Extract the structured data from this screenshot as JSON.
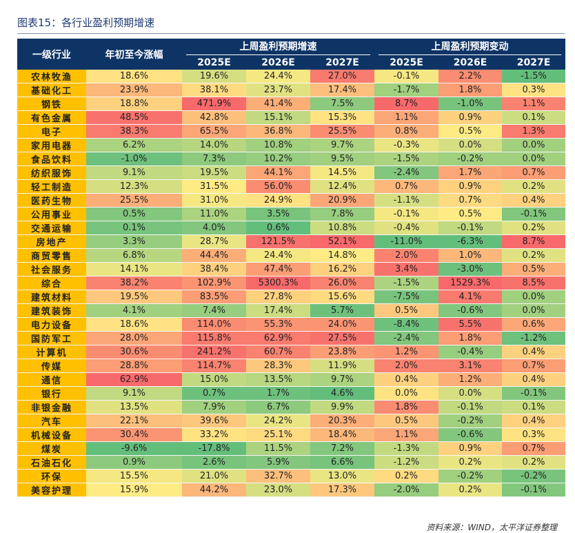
{
  "title": "图表15：各行业盈利预期增速",
  "header": {
    "industry": "一级行业",
    "ytd": "年初至今涨幅",
    "growth_group": "上周盈利预期增速",
    "change_group": "上周盈利预期变动",
    "years": [
      "2025E",
      "2026E",
      "2027E"
    ]
  },
  "rows": [
    {
      "name": "农林牧渔",
      "ytd": "18.6%",
      "g25": "19.6%",
      "g26": "24.4%",
      "g27": "27.0%",
      "c25": "-0.1%",
      "c26": "2.2%",
      "c27": "-1.5%"
    },
    {
      "name": "基础化工",
      "ytd": "23.9%",
      "g25": "38.1%",
      "g26": "23.7%",
      "g27": "17.4%",
      "c25": "-1.7%",
      "c26": "1.8%",
      "c27": "0.3%"
    },
    {
      "name": "钢铁",
      "ytd": "18.8%",
      "g25": "471.9%",
      "g26": "41.4%",
      "g27": "7.5%",
      "c25": "8.7%",
      "c26": "-1.0%",
      "c27": "1.1%"
    },
    {
      "name": "有色金属",
      "ytd": "48.5%",
      "g25": "42.8%",
      "g26": "15.1%",
      "g27": "15.3%",
      "c25": "1.1%",
      "c26": "0.9%",
      "c27": "0.1%"
    },
    {
      "name": "电子",
      "ytd": "38.3%",
      "g25": "65.5%",
      "g26": "36.8%",
      "g27": "25.5%",
      "c25": "0.8%",
      "c26": "0.5%",
      "c27": "1.3%"
    },
    {
      "name": "家用电器",
      "ytd": "6.2%",
      "g25": "14.0%",
      "g26": "10.8%",
      "g27": "9.7%",
      "c25": "-0.3%",
      "c26": "0.0%",
      "c27": "0.0%"
    },
    {
      "name": "食品饮料",
      "ytd": "-1.0%",
      "g25": "7.3%",
      "g26": "10.2%",
      "g27": "9.5%",
      "c25": "-1.5%",
      "c26": "-0.2%",
      "c27": "0.0%"
    },
    {
      "name": "纺织服饰",
      "ytd": "9.1%",
      "g25": "19.5%",
      "g26": "44.1%",
      "g27": "14.5%",
      "c25": "-2.4%",
      "c26": "1.7%",
      "c27": "0.7%"
    },
    {
      "name": "轻工制造",
      "ytd": "12.3%",
      "g25": "31.5%",
      "g26": "56.0%",
      "g27": "12.4%",
      "c25": "0.7%",
      "c26": "0.9%",
      "c27": "0.2%"
    },
    {
      "name": "医药生物",
      "ytd": "25.5%",
      "g25": "31.0%",
      "g26": "24.9%",
      "g27": "20.9%",
      "c25": "-1.1%",
      "c26": "0.7%",
      "c27": "0.4%"
    },
    {
      "name": "公用事业",
      "ytd": "0.5%",
      "g25": "11.0%",
      "g26": "3.5%",
      "g27": "7.8%",
      "c25": "-0.1%",
      "c26": "0.5%",
      "c27": "-0.1%"
    },
    {
      "name": "交通运输",
      "ytd": "0.1%",
      "g25": "4.0%",
      "g26": "0.6%",
      "g27": "10.8%",
      "c25": "-0.4%",
      "c26": "-0.1%",
      "c27": "0.2%"
    },
    {
      "name": "房地产",
      "ytd": "3.3%",
      "g25": "28.7%",
      "g26": "121.5%",
      "g27": "52.1%",
      "c25": "-11.0%",
      "c26": "-6.3%",
      "c27": "8.7%"
    },
    {
      "name": "商贸零售",
      "ytd": "6.8%",
      "g25": "44.4%",
      "g26": "24.4%",
      "g27": "14.8%",
      "c25": "2.0%",
      "c26": "1.0%",
      "c27": "0.2%"
    },
    {
      "name": "社会服务",
      "ytd": "14.1%",
      "g25": "38.4%",
      "g26": "47.4%",
      "g27": "16.2%",
      "c25": "3.4%",
      "c26": "-3.0%",
      "c27": "0.5%"
    },
    {
      "name": "综合",
      "ytd": "38.2%",
      "g25": "102.9%",
      "g26": "5300.3%",
      "g27": "26.0%",
      "c25": "-1.5%",
      "c26": "1529.3%",
      "c27": "8.5%"
    },
    {
      "name": "建筑材料",
      "ytd": "19.5%",
      "g25": "83.5%",
      "g26": "27.8%",
      "g27": "15.6%",
      "c25": "-7.5%",
      "c26": "4.1%",
      "c27": "0.0%"
    },
    {
      "name": "建筑装饰",
      "ytd": "4.1%",
      "g25": "7.4%",
      "g26": "17.4%",
      "g27": "5.7%",
      "c25": "0.5%",
      "c26": "-0.6%",
      "c27": "0.0%"
    },
    {
      "name": "电力设备",
      "ytd": "18.6%",
      "g25": "114.0%",
      "g26": "55.3%",
      "g27": "24.0%",
      "c25": "-8.4%",
      "c26": "5.5%",
      "c27": "0.6%"
    },
    {
      "name": "国防军工",
      "ytd": "28.0%",
      "g25": "115.8%",
      "g26": "62.9%",
      "g27": "27.5%",
      "c25": "-2.4%",
      "c26": "1.8%",
      "c27": "-1.2%"
    },
    {
      "name": "计算机",
      "ytd": "30.6%",
      "g25": "241.2%",
      "g26": "60.7%",
      "g27": "23.8%",
      "c25": "1.2%",
      "c26": "-0.4%",
      "c27": "0.4%"
    },
    {
      "name": "传媒",
      "ytd": "28.8%",
      "g25": "114.7%",
      "g26": "28.3%",
      "g27": "11.9%",
      "c25": "2.0%",
      "c26": "3.1%",
      "c27": "0.7%"
    },
    {
      "name": "通信",
      "ytd": "62.9%",
      "g25": "15.0%",
      "g26": "13.5%",
      "g27": "9.7%",
      "c25": "0.4%",
      "c26": "1.2%",
      "c27": "0.4%"
    },
    {
      "name": "银行",
      "ytd": "9.1%",
      "g25": "0.7%",
      "g26": "1.7%",
      "g27": "4.6%",
      "c25": "0.0%",
      "c26": "0.0%",
      "c27": "-0.1%"
    },
    {
      "name": "非银金融",
      "ytd": "13.5%",
      "g25": "7.9%",
      "g26": "6.7%",
      "g27": "9.9%",
      "c25": "1.8%",
      "c26": "-0.1%",
      "c27": "0.1%"
    },
    {
      "name": "汽车",
      "ytd": "22.1%",
      "g25": "39.6%",
      "g26": "24.2%",
      "g27": "20.3%",
      "c25": "0.5%",
      "c26": "-0.2%",
      "c27": "0.4%"
    },
    {
      "name": "机械设备",
      "ytd": "30.4%",
      "g25": "33.2%",
      "g26": "25.1%",
      "g27": "18.4%",
      "c25": "1.1%",
      "c26": "-0.6%",
      "c27": "0.3%"
    },
    {
      "name": "煤炭",
      "ytd": "-9.6%",
      "g25": "-17.8%",
      "g26": "11.5%",
      "g27": "7.2%",
      "c25": "-1.3%",
      "c26": "0.9%",
      "c27": "0.7%"
    },
    {
      "name": "石油石化",
      "ytd": "0.9%",
      "g25": "2.6%",
      "g26": "5.9%",
      "g27": "6.6%",
      "c25": "-1.2%",
      "c26": "0.2%",
      "c27": "0.2%"
    },
    {
      "name": "环保",
      "ytd": "15.5%",
      "g25": "21.0%",
      "g26": "32.7%",
      "g27": "13.0%",
      "c25": "0.2%",
      "c26": "-0.2%",
      "c27": "-0.2%"
    },
    {
      "name": "美容护理",
      "ytd": "15.9%",
      "g25": "44.2%",
      "g26": "23.0%",
      "g27": "17.3%",
      "c25": "-2.0%",
      "c26": "0.2%",
      "c27": "-0.1%"
    }
  ],
  "source": "资料来源：WIND，太平洋证券整理"
}
